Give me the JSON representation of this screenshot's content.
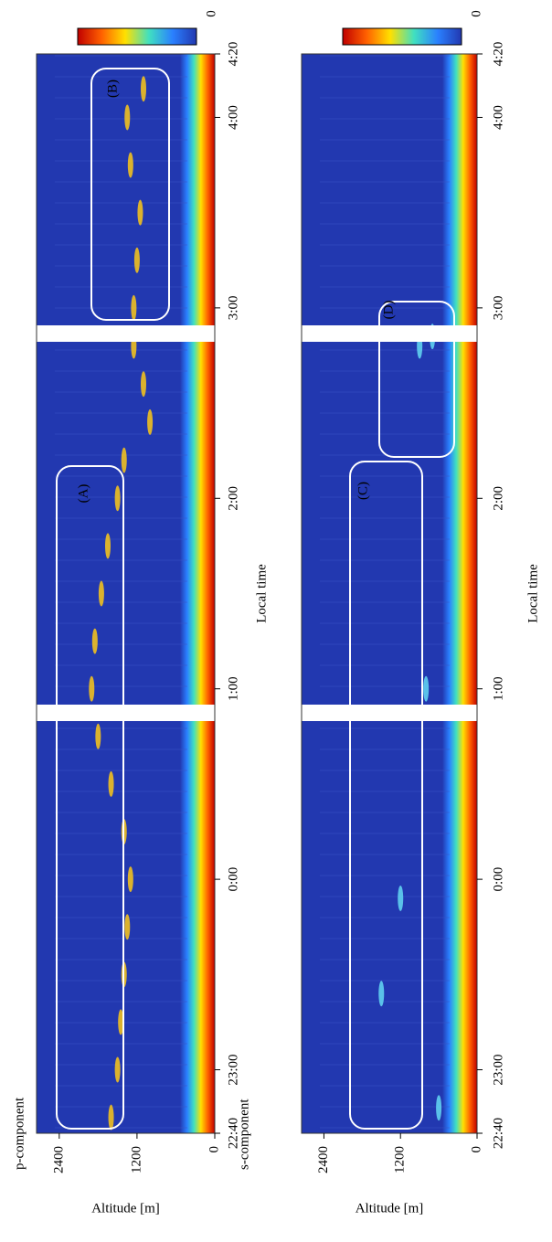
{
  "chart_data": [
    {
      "type": "heatmap",
      "title": "p-component",
      "xlabel": "Local time",
      "ylabel": "Altitude [m]",
      "xlim": [
        -1.3333,
        4.3333
      ],
      "xticks": [
        {
          "value": -1.3333,
          "label": "22:40"
        },
        {
          "value": -1,
          "label": "23:00"
        },
        {
          "value": 0,
          "label": "0:00"
        },
        {
          "value": 1,
          "label": "1:00"
        },
        {
          "value": 2,
          "label": "2:00"
        },
        {
          "value": 3,
          "label": "3:00"
        },
        {
          "value": 4,
          "label": "4:00"
        },
        {
          "value": 4.3333,
          "label": "4:20"
        }
      ],
      "ylim": [
        0,
        2750
      ],
      "yticks": [
        0,
        1200,
        2400
      ],
      "background": "#2238b0",
      "colorbar": {
        "label": "0",
        "colors": [
          "#c00000",
          "#ff6000",
          "#ffe000",
          "#40e0c0",
          "#2a80ff",
          "#2238b0"
        ]
      },
      "points": {
        "color": "#f0c020",
        "x": [
          -1.25,
          -1.0,
          -0.75,
          -0.5,
          -0.25,
          0,
          0.25,
          0.5,
          0.75,
          1.0,
          1.25,
          1.5,
          1.75,
          2.0,
          2.2,
          2.4,
          2.6,
          2.8,
          3.0,
          3.25,
          3.5,
          3.75,
          4.0,
          4.15
        ],
        "y": [
          1600,
          1500,
          1450,
          1400,
          1350,
          1300,
          1400,
          1600,
          1800,
          1900,
          1850,
          1750,
          1650,
          1500,
          1400,
          1000,
          1100,
          1250,
          1250,
          1200,
          1150,
          1300,
          1350,
          1100
        ]
      },
      "annotations": [
        {
          "text": "(A)"
        },
        {
          "text": "(B)"
        }
      ]
    },
    {
      "type": "heatmap",
      "title": "s-component",
      "xlabel": "Local time",
      "ylabel": "Altitude [m]",
      "xlim": [
        -1.3333,
        4.3333
      ],
      "xticks": [
        {
          "value": -1.3333,
          "label": "22:40"
        },
        {
          "value": -1,
          "label": "23:00"
        },
        {
          "value": 0,
          "label": "0:00"
        },
        {
          "value": 1,
          "label": "1:00"
        },
        {
          "value": 2,
          "label": "2:00"
        },
        {
          "value": 3,
          "label": "3:00"
        },
        {
          "value": 4,
          "label": "4:00"
        },
        {
          "value": 4.3333,
          "label": "4:20"
        }
      ],
      "ylim": [
        0,
        2750
      ],
      "yticks": [
        0,
        1200,
        2400
      ],
      "background": "#2238b0",
      "colorbar": {
        "label": "0",
        "colors": [
          "#c00000",
          "#ff6000",
          "#ffe000",
          "#40e0c0",
          "#2a80ff",
          "#2238b0"
        ]
      },
      "points": {
        "color": "#60d0f0",
        "x": [
          -1.2,
          -0.6,
          -0.1,
          1.0,
          2.8,
          2.85
        ],
        "y": [
          600,
          1500,
          1200,
          800,
          900,
          700
        ]
      },
      "annotations": [
        {
          "text": "(C)"
        },
        {
          "text": "(D)"
        }
      ]
    }
  ]
}
